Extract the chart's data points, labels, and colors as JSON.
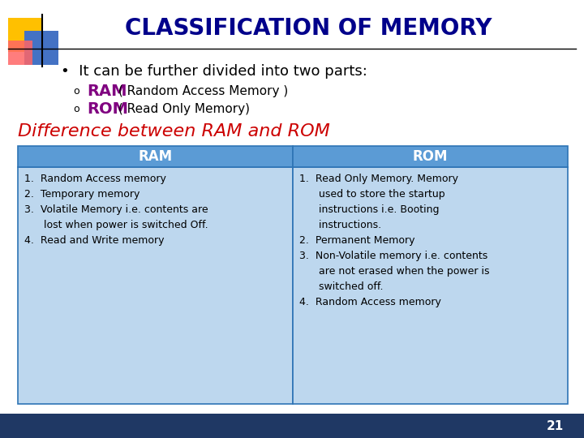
{
  "title": "CLASSIFICATION OF MEMORY",
  "title_color": "#00008B",
  "bg_color": "#FFFFFF",
  "bullet_text": "It can be further divided into two parts:",
  "sub_bullets": [
    {
      "bold": "RAM",
      "rest": " ( Random Access Memory )",
      "color": "#800080"
    },
    {
      "bold": "ROM",
      "rest": " ( Read Only Memory)",
      "color": "#800080"
    }
  ],
  "diff_title": "Difference between RAM and ROM",
  "diff_title_color": "#CC0000",
  "table_header_bg": "#5B9BD5",
  "table_header_text": "#FFFFFF",
  "table_body_bg": "#BDD7EE",
  "table_border_color": "#2E74B5",
  "ram_header": "RAM",
  "rom_header": "ROM",
  "ram_items": "1.  Random Access memory\n2.  Temporary memory\n3.  Volatile Memory i.e. contents are\n      lost when power is switched Off.\n4.  Read and Write memory",
  "rom_items": "1.  Read Only Memory. Memory\n      used to store the startup\n      instructions i.e. Booting\n      instructions.\n2.  Permanent Memory\n3.  Non-Volatile memory i.e. contents\n      are not erased when the power is\n      switched off.\n4.  Random Access memory",
  "page_number": "21",
  "bottom_bar_color": "#1F3864",
  "deco_yellow": "#FFC000",
  "deco_blue": "#4472C4",
  "deco_red_pink": "#FF6666",
  "line_color": "#000000"
}
